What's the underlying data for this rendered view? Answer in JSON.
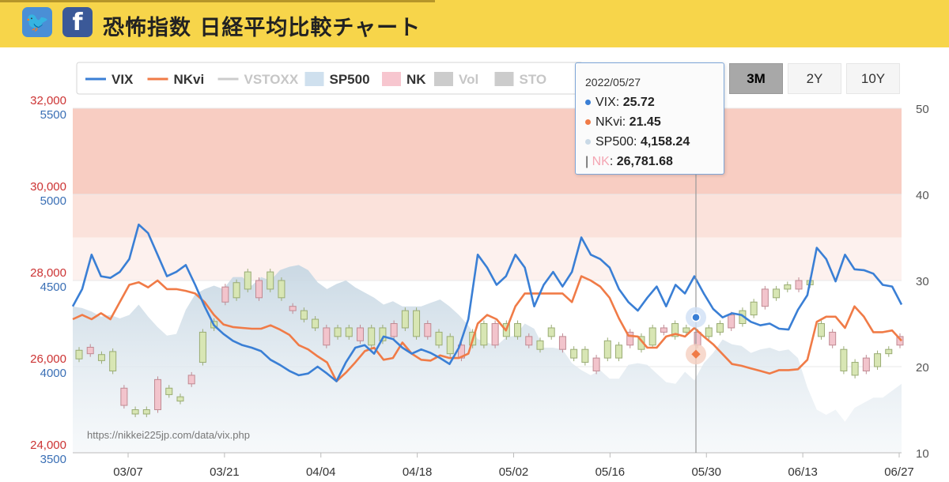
{
  "header": {
    "title": "恐怖指数 日経平均比較チャート",
    "twitter_icon": "twitter-icon",
    "facebook_icon": "facebook-icon",
    "twitter_glyph": "🐦",
    "facebook_glyph": "f"
  },
  "range_buttons": [
    "3M",
    "2Y",
    "10Y"
  ],
  "active_range": "3M",
  "watermark": "https://nikkei225jp.com/data/vix.php",
  "tooltip": {
    "date": "2022/05/27",
    "rows": [
      {
        "label": "VIX",
        "value": "25.72",
        "color": "#3a7fd5"
      },
      {
        "label": "NKvi",
        "value": "21.45",
        "color": "#f07b47"
      },
      {
        "label": "SP500",
        "value": "4,158.24",
        "color": "#c9d9e6"
      },
      {
        "label": "NK",
        "value": "26,781.68",
        "color": "#f4a6b3"
      }
    ],
    "nk_prefix": "|"
  },
  "chart_data": {
    "type": "line",
    "xlabels": [
      "03/07",
      "03/21",
      "04/04",
      "04/18",
      "05/02",
      "05/16",
      "05/30",
      "06/13",
      "06/27"
    ],
    "legend": [
      {
        "name": "VIX",
        "color": "#3a7fd5",
        "kind": "line",
        "enabled": true
      },
      {
        "name": "NKvi",
        "color": "#f07b47",
        "kind": "line",
        "enabled": true
      },
      {
        "name": "VSTOXX",
        "color": "#cccccc",
        "kind": "line",
        "enabled": false
      },
      {
        "name": "SP500",
        "color": "#cfe0ee",
        "kind": "box",
        "enabled": true
      },
      {
        "name": "NK",
        "color": "#f7c6cf",
        "kind": "box",
        "enabled": true
      },
      {
        "name": "Vol",
        "color": "#bbbbbb",
        "kind": "box",
        "enabled": false
      },
      {
        "name": "STO",
        "color": "#bbbbbb",
        "kind": "box",
        "enabled": false
      }
    ],
    "left_axis_nk": {
      "ticks": [
        "32,000",
        "30,000",
        "28,000",
        "26,000",
        "24,000"
      ],
      "range": [
        24000,
        32000
      ],
      "color": "#cc3333"
    },
    "left_axis_sp": {
      "ticks": [
        "5500",
        "5000",
        "4500",
        "4000",
        "3500"
      ],
      "range": [
        3500,
        5500
      ],
      "color": "#3a6fb5"
    },
    "right_axis": {
      "ticks": [
        "50",
        "40",
        "30",
        "20",
        "10"
      ],
      "range": [
        10,
        50
      ],
      "color": "#555555"
    },
    "bands": [
      {
        "from": 40,
        "to": 50,
        "color": "#f8cdc2"
      },
      {
        "from": 35,
        "to": 40,
        "color": "#fbe2db"
      },
      {
        "from": 30,
        "to": 35,
        "color": "#fdf1ee"
      }
    ],
    "vix": [
      27,
      29,
      33,
      30.5,
      30.3,
      31,
      32.5,
      36.5,
      35.5,
      33,
      30.5,
      31,
      31.8,
      29.5,
      27,
      24.8,
      23.8,
      23,
      22.5,
      22.2,
      21.8,
      20.8,
      20.2,
      19.5,
      19,
      19.2,
      20,
      19.2,
      18.3,
      20.5,
      22.2,
      22.5,
      21.5,
      23.5,
      23.2,
      22.2,
      21.5,
      22,
      21.6,
      21,
      20.3,
      22.2,
      25.5,
      33,
      31.5,
      29.5,
      30.5,
      33,
      31.5,
      27,
      29.5,
      31,
      29.3,
      31,
      35,
      33,
      32.5,
      31.5,
      29,
      27.5,
      26.5,
      28,
      29.3,
      27,
      29.5,
      28.5,
      30.5,
      28.5,
      26.7,
      25.72,
      26.2,
      26,
      25.2,
      24.8,
      25,
      24.4,
      24.3,
      26.6,
      28.3,
      33.8,
      32.5,
      29.9,
      33,
      31.3,
      31.2,
      30.8,
      29.5,
      29.3,
      27.2
    ],
    "nkvi": [
      25.5,
      26,
      25.5,
      26.2,
      25.5,
      27.5,
      29.5,
      29.8,
      29.2,
      30,
      29,
      29,
      28.8,
      28.5,
      27.5,
      26,
      24.9,
      24.6,
      24.5,
      24.4,
      24.4,
      24.8,
      24.3,
      23.7,
      22.5,
      22,
      21.2,
      20.5,
      18.3,
      19.3,
      20.5,
      21.8,
      22.2,
      20.8,
      21,
      22.8,
      21.5,
      20.8,
      20.7,
      21.3,
      21,
      21,
      21.5,
      25,
      26,
      25.5,
      24.2,
      27,
      28.5,
      28.5,
      28.5,
      28.5,
      28.5,
      27.5,
      30.5,
      30,
      29.3,
      28,
      25.6,
      23.6,
      23.5,
      22.2,
      22.2,
      23.5,
      23.8,
      23.5,
      24.5,
      23.5,
      22.6,
      21.45,
      20.3,
      20.1,
      19.8,
      19.5,
      19.2,
      19.6,
      19.6,
      19.7,
      20.8,
      25.2,
      25.8,
      25.8,
      24.5,
      27,
      25.8,
      24,
      24,
      24.2,
      23
    ],
    "sp500": [
      4350,
      4340,
      4320,
      4290,
      4300,
      4280,
      4300,
      4360,
      4290,
      4230,
      4180,
      4190,
      4330,
      4420,
      4450,
      4470,
      4450,
      4520,
      4520,
      4470,
      4520,
      4500,
      4560,
      4580,
      4590,
      4560,
      4490,
      4450,
      4480,
      4500,
      4460,
      4430,
      4400,
      4360,
      4380,
      4350,
      4350,
      4350,
      4370,
      4390,
      4350,
      4300,
      4240,
      4160,
      4140,
      4120,
      4170,
      4180,
      4250,
      4220,
      4110,
      4110,
      4100,
      4020,
      3980,
      3950,
      3980,
      3930,
      3930,
      4010,
      4020,
      4010,
      3960,
      3910,
      3900,
      3970,
      3920,
      4020,
      4080,
      4158,
      4130,
      4120,
      4080,
      4100,
      4110,
      4090,
      4100,
      4050,
      3880,
      3750,
      3720,
      3750,
      3680,
      3760,
      3790,
      3820,
      3820,
      3860,
      3900
    ],
    "nk_candles": [
      [
        26180,
        26380
      ],
      [
        26300,
        26450
      ],
      [
        26140,
        26280
      ],
      [
        25900,
        26350
      ],
      [
        25100,
        25500
      ],
      [
        24900,
        25000
      ],
      [
        24900,
        25000
      ],
      [
        25000,
        25700
      ],
      [
        25350,
        25500
      ],
      [
        25200,
        25300
      ],
      [
        25600,
        25800
      ],
      [
        26100,
        26800
      ],
      [
        26900,
        27050
      ],
      [
        27500,
        27850
      ],
      [
        27600,
        27950
      ],
      [
        27800,
        28200
      ],
      [
        27600,
        28000
      ],
      [
        27800,
        28200
      ],
      [
        27600,
        28000
      ],
      [
        27300,
        27400
      ],
      [
        27100,
        27300
      ],
      [
        26900,
        27100
      ],
      [
        26500,
        26900
      ],
      [
        26700,
        26900
      ],
      [
        26700,
        26900
      ],
      [
        26600,
        26900
      ],
      [
        26500,
        26900
      ],
      [
        26600,
        26900
      ],
      [
        26700,
        27000
      ],
      [
        26900,
        27300
      ],
      [
        26700,
        27300
      ],
      [
        26700,
        27000
      ],
      [
        26500,
        26800
      ],
      [
        26300,
        26700
      ],
      [
        26200,
        26500
      ],
      [
        26500,
        26800
      ],
      [
        26500,
        27000
      ],
      [
        26500,
        27000
      ],
      [
        26700,
        27000
      ],
      [
        26700,
        27000
      ],
      [
        26500,
        26700
      ],
      [
        26400,
        26600
      ],
      [
        26700,
        26900
      ],
      [
        26400,
        26700
      ],
      [
        26200,
        26400
      ],
      [
        26100,
        26400
      ],
      [
        25900,
        26200
      ],
      [
        26200,
        26600
      ],
      [
        26200,
        26500
      ],
      [
        26500,
        26800
      ],
      [
        26400,
        26700
      ],
      [
        26500,
        26900
      ],
      [
        26800,
        26900
      ],
      [
        26700,
        27000
      ],
      [
        26800,
        26900
      ],
      [
        26500,
        26800
      ],
      [
        26700,
        26900
      ],
      [
        26800,
        27000
      ],
      [
        26900,
        27200
      ],
      [
        27000,
        27300
      ],
      [
        27200,
        27500
      ],
      [
        27400,
        27800
      ],
      [
        27600,
        27800
      ],
      [
        27800,
        27900
      ],
      [
        27800,
        28000
      ],
      [
        27900,
        28000
      ],
      [
        26700,
        27000
      ],
      [
        26500,
        26800
      ],
      [
        25900,
        26400
      ],
      [
        25800,
        26100
      ],
      [
        25900,
        26200
      ],
      [
        26000,
        26300
      ],
      [
        26300,
        26400
      ],
      [
        26500,
        26700
      ]
    ]
  }
}
